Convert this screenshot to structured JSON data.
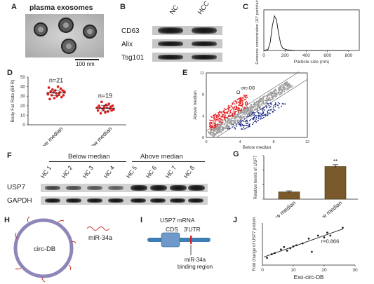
{
  "panels": {
    "A": {
      "label": "A",
      "title": "plasma exosomes",
      "scale": "100 nm"
    },
    "B": {
      "label": "B",
      "columns": [
        "NC",
        "HCC"
      ],
      "rows": [
        "CD63",
        "Alix",
        "Tsg101"
      ]
    },
    "C": {
      "label": "C",
      "ylabel": "Exosome concentration (10⁷ particle/ml)",
      "xlabel": "Particle size (nm)",
      "xticks": [
        "0",
        "200",
        "400",
        "600",
        "800"
      ]
    },
    "D": {
      "label": "D",
      "ylabel": "Body Fat Rate (BFR)",
      "groups": [
        "Above median",
        "Below median"
      ],
      "n_labels": [
        "n=21",
        "n=19"
      ],
      "yticks": [
        "0",
        "10",
        "20",
        "30",
        "40",
        "50"
      ]
    },
    "E": {
      "label": "E",
      "ylabel": "Above median",
      "xlabel": "Below median",
      "annotation": "circ-DB",
      "ticks": [
        "0",
        "4",
        "8",
        "12"
      ]
    },
    "F": {
      "label": "F",
      "group_headers": [
        "Below median",
        "Above median"
      ],
      "lanes": [
        "HC 1",
        "HC 2",
        "HC 3",
        "HC 4",
        "HC 5",
        "HC 6",
        "HC 7",
        "HC 8"
      ],
      "rows": [
        "USP7",
        "GAPDH"
      ]
    },
    "G": {
      "label": "G",
      "ylabel": "Relative levels of USP7",
      "sig": "**"
    },
    "H": {
      "label": "H",
      "circle_label": "circ-DB",
      "mirna_label": "miR-34a"
    },
    "I": {
      "label": "I",
      "title": "USP7 mRNA",
      "cds": "CDS",
      "utr": "3'UTR",
      "binding": "miR-34a binding region"
    },
    "J": {
      "label": "J",
      "ylabel": "Fold change of USP7 protein",
      "xlabel": "Exo-circ-DB",
      "r_label": "r=0.866",
      "xticks": [
        "0",
        "10",
        "20",
        "30"
      ]
    }
  },
  "chart_data": [
    {
      "type": "line",
      "panel": "C",
      "title": "",
      "xlabel": "Particle size (nm)",
      "ylabel": "Exosome concentration (10⁷ particle/ml)",
      "xlim": [
        0,
        900
      ],
      "ylim": [
        0,
        20
      ],
      "x": [
        0,
        40,
        60,
        80,
        100,
        120,
        140,
        160,
        180,
        220,
        300,
        500,
        800
      ],
      "y": [
        0,
        0.5,
        4,
        12,
        17,
        15,
        8,
        3,
        1,
        0.3,
        0,
        0,
        0
      ]
    },
    {
      "type": "scatter",
      "panel": "D",
      "title": "",
      "categories": [
        "Above median",
        "Below median"
      ],
      "ylabel": "Body Fat Rate (BFR)",
      "ylim": [
        0,
        50
      ],
      "series": [
        {
          "values": [
            33,
            35,
            31,
            36,
            29,
            38,
            34,
            32,
            40,
            30,
            33,
            36,
            28,
            34,
            37,
            31,
            35,
            27,
            39,
            32,
            34
          ]
        },
        {
          "values": [
            18,
            16,
            20,
            15,
            19,
            17,
            22,
            14,
            18,
            21,
            13,
            19,
            16,
            17,
            24,
            12,
            18,
            20,
            15
          ]
        }
      ],
      "means": [
        33.5,
        17.5
      ]
    },
    {
      "type": "bar",
      "panel": "G",
      "title": "",
      "categories": [
        "Below median",
        "Above median"
      ],
      "values": [
        1.0,
        4.5
      ],
      "errors": [
        0.15,
        0.25
      ],
      "ylabel": "Relative levels of USP7",
      "ylim": [
        0,
        6
      ]
    },
    {
      "type": "scatter",
      "panel": "J",
      "title": "",
      "xlabel": "Exo-circ-DB",
      "ylabel": "Fold change of USP7 protein",
      "xlim": [
        0,
        30
      ],
      "ylim": [
        0,
        7
      ],
      "x": [
        1.5,
        3,
        4,
        6,
        7,
        8,
        9,
        10,
        11,
        13,
        15,
        16,
        18,
        20,
        21,
        22,
        26
      ],
      "y": [
        1.2,
        1.8,
        2.0,
        2.6,
        3.0,
        2.4,
        2.8,
        3.1,
        3.3,
        3.6,
        4.4,
        2.2,
        4.9,
        4.6,
        5.4,
        4.9,
        6.2
      ],
      "r_label": "r=0.866"
    }
  ],
  "colors": {
    "brown": "#7a5a2a",
    "red": "#e41a1c",
    "blue": "#1f2d8a",
    "circle": "#8e86b8",
    "mrna": "#3d7fb5"
  }
}
